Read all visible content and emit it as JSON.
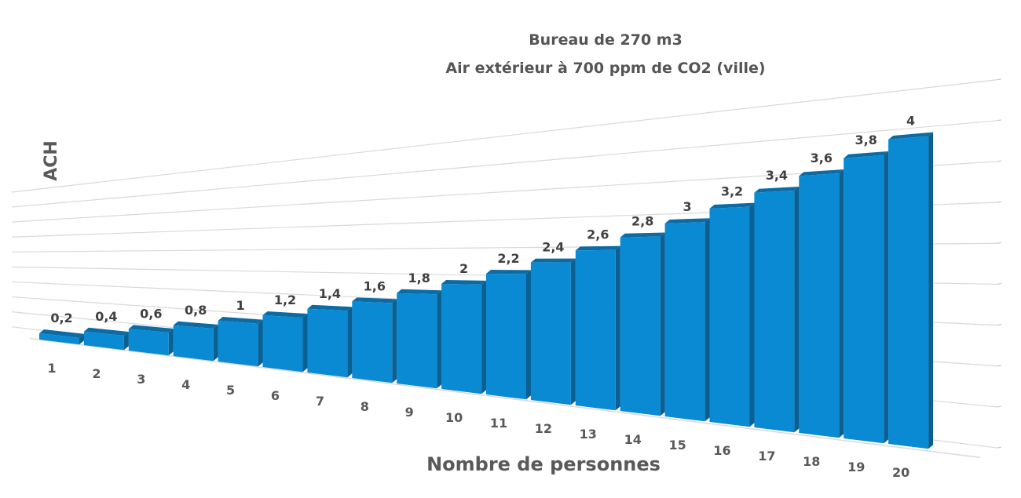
{
  "chart_data": {
    "type": "bar",
    "title_lines": [
      "Bureau de 270 m3",
      "Air extérieur à 700 ppm de CO2 (ville)"
    ],
    "xlabel": "Nombre de personnes",
    "ylabel": "ACH",
    "categories": [
      "1",
      "2",
      "3",
      "4",
      "5",
      "6",
      "7",
      "8",
      "9",
      "10",
      "11",
      "12",
      "13",
      "14",
      "15",
      "16",
      "17",
      "18",
      "19",
      "20"
    ],
    "values": [
      0.2,
      0.4,
      0.6,
      0.8,
      1.0,
      1.2,
      1.4,
      1.6,
      1.8,
      2.0,
      2.2,
      2.4,
      2.6,
      2.8,
      3.0,
      3.2,
      3.4,
      3.6,
      3.8,
      4.0
    ],
    "data_labels": [
      "0,2",
      "0,4",
      "0,6",
      "0,8",
      "1",
      "1,2",
      "1,4",
      "1,6",
      "1,8",
      "2",
      "2,2",
      "2,4",
      "2,6",
      "2,8",
      "3",
      "3,2",
      "3,4",
      "3,6",
      "3,8",
      "4"
    ],
    "ylim": [
      0,
      4.5
    ],
    "grid": true,
    "bar_colors": {
      "front": "#0a8ad2",
      "top": "#0d6ba3",
      "side": "#0b5f91"
    },
    "text_color": "#404040",
    "grid_color": "#d9d9d9"
  }
}
